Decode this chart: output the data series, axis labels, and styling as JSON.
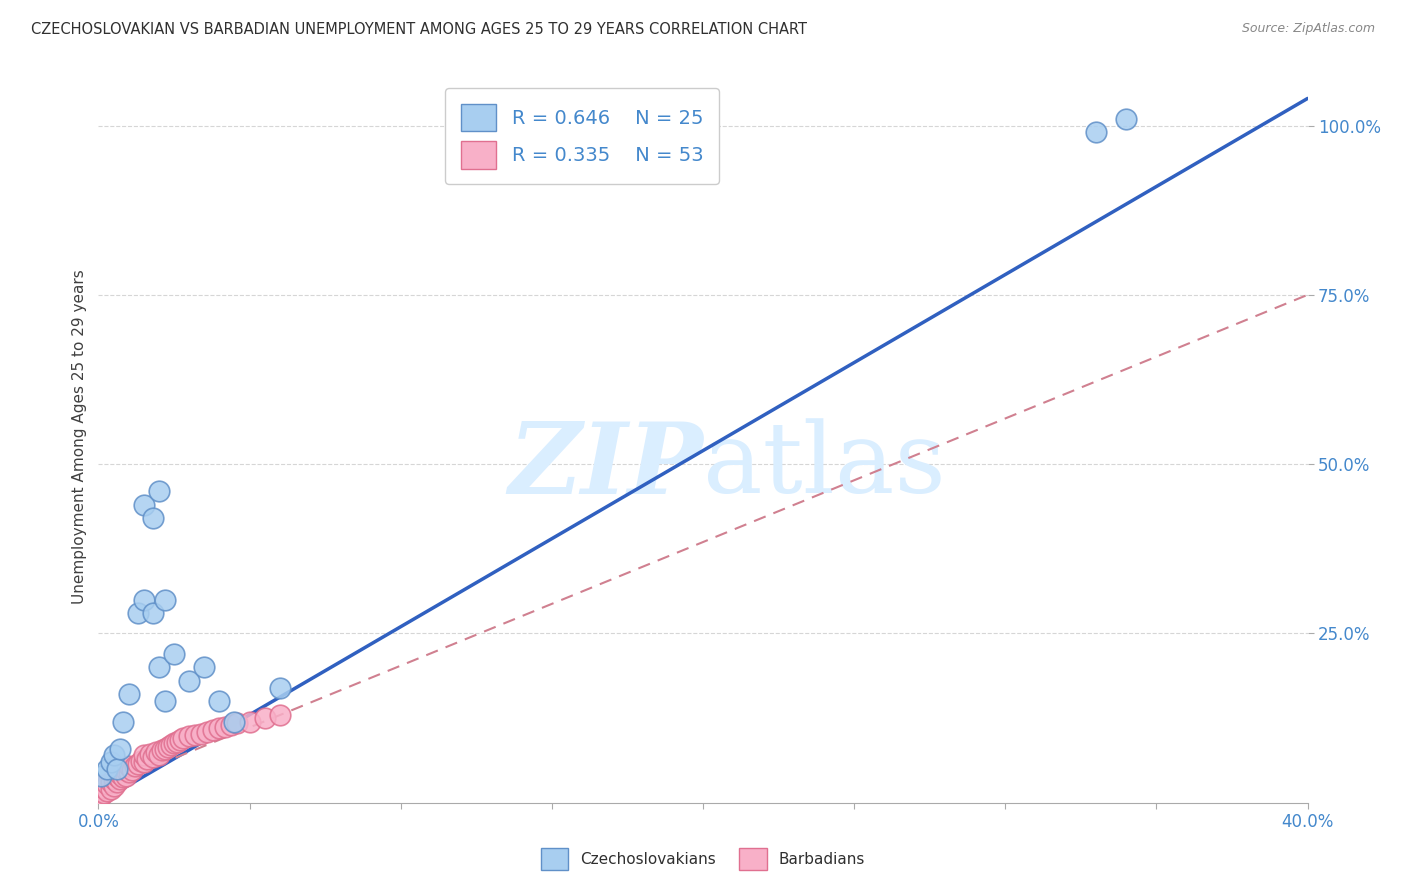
{
  "title": "CZECHOSLOVAKIAN VS BARBADIAN UNEMPLOYMENT AMONG AGES 25 TO 29 YEARS CORRELATION CHART",
  "source": "Source: ZipAtlas.com",
  "ylabel": "Unemployment Among Ages 25 to 29 years",
  "xlim": [
    0.0,
    0.4
  ],
  "ylim": [
    0.0,
    1.08
  ],
  "xtick_labels_ends": [
    "0.0%",
    "40.0%"
  ],
  "xtick_vals_ends": [
    0.0,
    0.4
  ],
  "xtick_vals_minor": [
    0.05,
    0.1,
    0.15,
    0.2,
    0.25,
    0.3,
    0.35
  ],
  "ytick_labels": [
    "25.0%",
    "50.0%",
    "75.0%",
    "100.0%"
  ],
  "ytick_vals": [
    0.25,
    0.5,
    0.75,
    1.0
  ],
  "legend_r1": "R = 0.646",
  "legend_n1": "N = 25",
  "legend_r2": "R = 0.335",
  "legend_n2": "N = 53",
  "czech_color": "#a8cef0",
  "barb_color": "#f8b0c8",
  "czech_edge_color": "#6090c8",
  "barb_edge_color": "#e07090",
  "trendline1_color": "#3060c0",
  "trendline2_color": "#d08090",
  "grid_color": "#cccccc",
  "watermark_color": "#daeeff",
  "title_color": "#303030",
  "axis_label_color": "#404040",
  "tick_color": "#4488cc",
  "background_color": "#ffffff",
  "czech_x": [
    0.001,
    0.003,
    0.004,
    0.005,
    0.006,
    0.007,
    0.008,
    0.01,
    0.013,
    0.015,
    0.018,
    0.02,
    0.022,
    0.025,
    0.03,
    0.035,
    0.04,
    0.045,
    0.06,
    0.015,
    0.018,
    0.02,
    0.022,
    0.33,
    0.34
  ],
  "czech_y": [
    0.04,
    0.05,
    0.06,
    0.07,
    0.05,
    0.08,
    0.12,
    0.16,
    0.28,
    0.3,
    0.28,
    0.2,
    0.3,
    0.22,
    0.18,
    0.2,
    0.15,
    0.12,
    0.17,
    0.44,
    0.42,
    0.46,
    0.15,
    0.99,
    1.01
  ],
  "barb_x": [
    0.0003,
    0.0005,
    0.001,
    0.001,
    0.001,
    0.002,
    0.002,
    0.003,
    0.003,
    0.004,
    0.004,
    0.005,
    0.005,
    0.006,
    0.006,
    0.007,
    0.007,
    0.008,
    0.009,
    0.009,
    0.01,
    0.01,
    0.011,
    0.012,
    0.013,
    0.014,
    0.015,
    0.015,
    0.016,
    0.017,
    0.018,
    0.019,
    0.02,
    0.021,
    0.022,
    0.023,
    0.024,
    0.025,
    0.026,
    0.027,
    0.028,
    0.03,
    0.032,
    0.034,
    0.036,
    0.038,
    0.04,
    0.042,
    0.044,
    0.046,
    0.05,
    0.055,
    0.06
  ],
  "barb_y": [
    0.005,
    0.008,
    0.012,
    0.018,
    0.025,
    0.015,
    0.022,
    0.018,
    0.028,
    0.02,
    0.03,
    0.025,
    0.035,
    0.03,
    0.04,
    0.035,
    0.042,
    0.038,
    0.04,
    0.048,
    0.045,
    0.055,
    0.048,
    0.055,
    0.058,
    0.062,
    0.06,
    0.07,
    0.065,
    0.072,
    0.068,
    0.075,
    0.07,
    0.078,
    0.08,
    0.082,
    0.085,
    0.088,
    0.09,
    0.092,
    0.095,
    0.098,
    0.1,
    0.102,
    0.105,
    0.108,
    0.11,
    0.112,
    0.115,
    0.118,
    0.12,
    0.125,
    0.13
  ],
  "trendline1_x": [
    0.0,
    0.4
  ],
  "trendline1_y": [
    0.0,
    1.04
  ],
  "trendline2_x": [
    0.0,
    0.4
  ],
  "trendline2_y": [
    0.02,
    0.75
  ]
}
